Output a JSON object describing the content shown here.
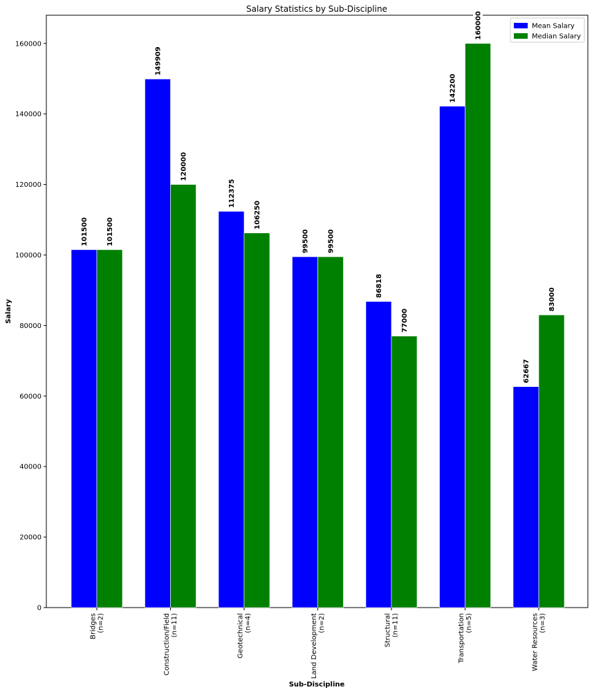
{
  "chart_data": {
    "type": "bar",
    "title": "Salary Statistics by Sub-Discipline",
    "xlabel": "Sub-Discipline",
    "ylabel": "Salary",
    "ylim": [
      0,
      168000
    ],
    "yticks": [
      0,
      20000,
      40000,
      60000,
      80000,
      100000,
      120000,
      140000,
      160000
    ],
    "categories": [
      [
        "Bridges",
        "(n=2)"
      ],
      [
        "Construction/Field",
        "(n=11)"
      ],
      [
        "Geotechnical",
        "(n=4)"
      ],
      [
        "Land Development",
        "(n=2)"
      ],
      [
        "Structural",
        "(n=11)"
      ],
      [
        "Transportation",
        "(n=5)"
      ],
      [
        "Water Resources",
        "(n=3)"
      ]
    ],
    "series": [
      {
        "name": "Mean Salary",
        "color": "#0000ff",
        "values": [
          101500,
          149909,
          112375,
          99500,
          86818,
          142200,
          62667
        ]
      },
      {
        "name": "Median Salary",
        "color": "#008000",
        "values": [
          101500,
          120000,
          106250,
          99500,
          77000,
          160000,
          83000
        ]
      }
    ],
    "legend_position": "top-right",
    "grid": false
  }
}
